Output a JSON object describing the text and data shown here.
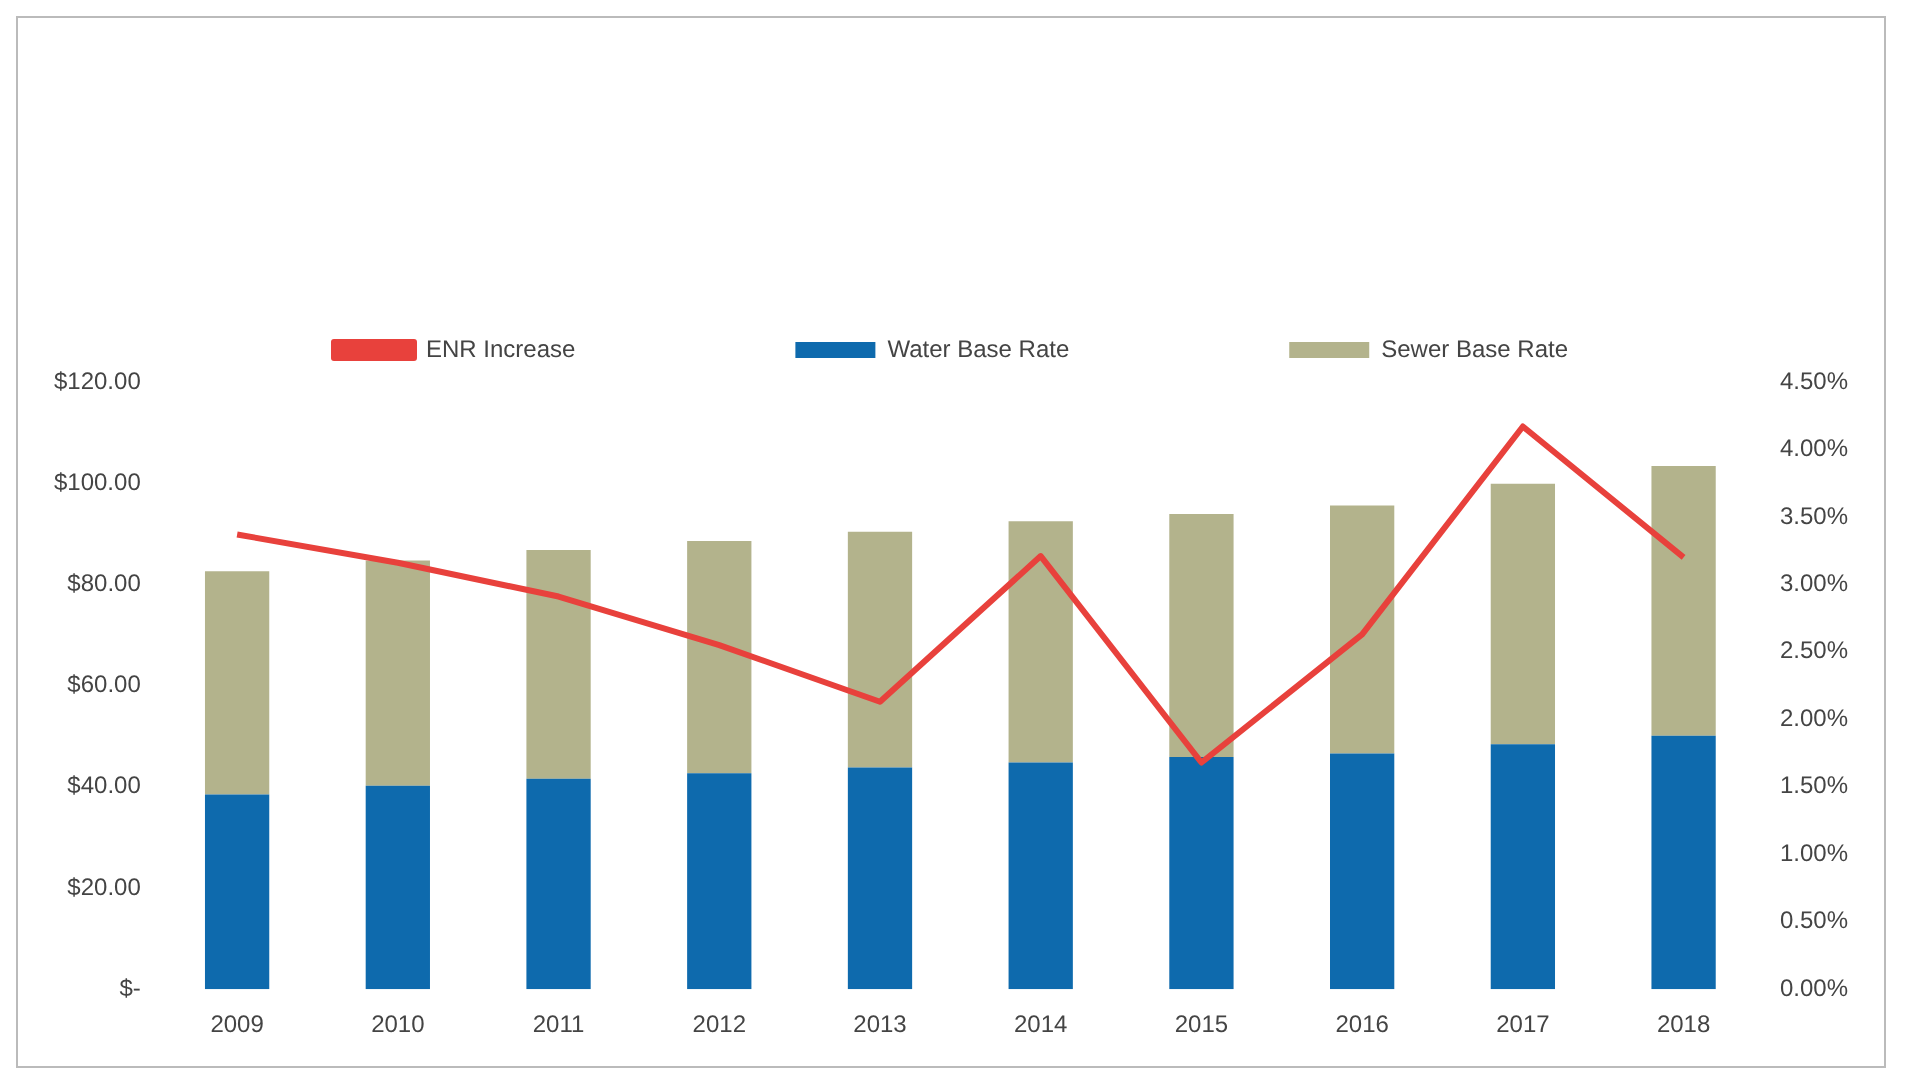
{
  "chart_data": {
    "type": "bar",
    "stacked": true,
    "legend": "top",
    "grid": false,
    "categories": [
      "2009",
      "2010",
      "2011",
      "2012",
      "2013",
      "2014",
      "2015",
      "2016",
      "2017",
      "2018"
    ],
    "series": [
      {
        "name": "Water Base Rate",
        "color": "#0e6aad",
        "values": [
          38.5,
          40.2,
          41.6,
          42.7,
          43.8,
          44.8,
          45.9,
          46.6,
          48.4,
          50.1
        ]
      },
      {
        "name": "Sewer Base Rate",
        "color": "#b3b38c",
        "values": [
          44.1,
          44.5,
          45.2,
          45.9,
          46.6,
          47.7,
          48.0,
          49.0,
          51.5,
          53.3
        ]
      },
      {
        "name": "ENR Increase",
        "type": "line",
        "axis": "y2",
        "color": "#e8413c",
        "values": [
          3.37,
          3.16,
          2.91,
          2.55,
          2.13,
          3.21,
          1.68,
          2.63,
          4.17,
          3.2
        ]
      }
    ],
    "ylim": [
      0,
      120
    ],
    "yticks": [
      {
        "value": 0,
        "label": "$-"
      },
      {
        "value": 20,
        "label": "$20.00"
      },
      {
        "value": 40,
        "label": "$40.00"
      },
      {
        "value": 60,
        "label": "$60.00"
      },
      {
        "value": 80,
        "label": "$80.00"
      },
      {
        "value": 100,
        "label": "$100.00"
      },
      {
        "value": 120,
        "label": "$120.00"
      }
    ],
    "y2lim": [
      0,
      4.5
    ],
    "y2ticks": [
      {
        "value": 0,
        "label": "0.00%"
      },
      {
        "value": 0.5,
        "label": "0.50%"
      },
      {
        "value": 1,
        "label": "1.00%"
      },
      {
        "value": 1.5,
        "label": "1.50%"
      },
      {
        "value": 2,
        "label": "2.00%"
      },
      {
        "value": 2.5,
        "label": "2.50%"
      },
      {
        "value": 3,
        "label": "3.00%"
      },
      {
        "value": 3.5,
        "label": "3.50%"
      },
      {
        "value": 4,
        "label": "4.00%"
      },
      {
        "value": 4.5,
        "label": "4.50%"
      }
    ]
  }
}
